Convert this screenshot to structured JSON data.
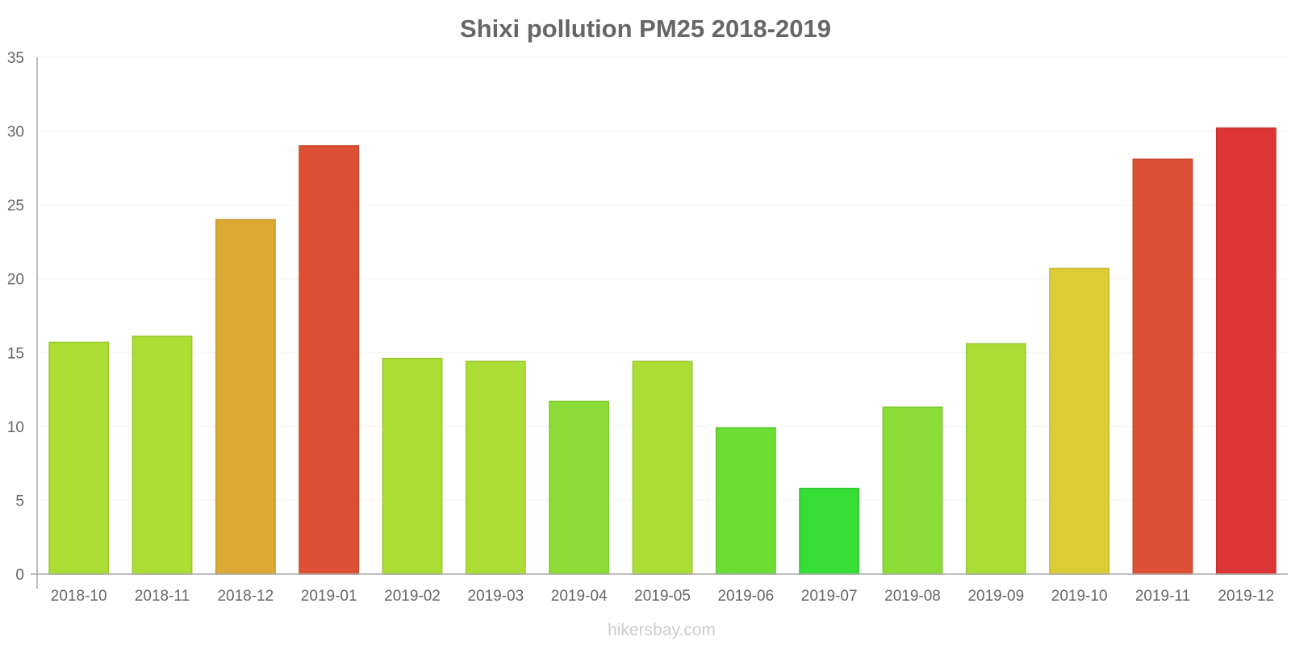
{
  "chart_data": {
    "type": "bar",
    "title": "Shixi pollution PM25 2018-2019",
    "xlabel": "",
    "ylabel": "",
    "ylim": [
      0,
      35
    ],
    "yticks": [
      0,
      5,
      10,
      15,
      20,
      25,
      30,
      35
    ],
    "grid": true,
    "legend": "none",
    "categories": [
      "2018-10",
      "2018-11",
      "2018-12",
      "2019-01",
      "2019-02",
      "2019-03",
      "2019-04",
      "2019-05",
      "2019-06",
      "2019-07",
      "2019-08",
      "2019-09",
      "2019-10",
      "2019-11",
      "2019-12"
    ],
    "values": [
      15.7,
      16.1,
      24.0,
      29.0,
      14.6,
      14.4,
      11.7,
      14.4,
      9.9,
      5.8,
      11.3,
      15.6,
      20.7,
      28.1,
      30.2
    ],
    "colors": [
      "#acdd35",
      "#acdd35",
      "#dca935",
      "#dd5035",
      "#acdd35",
      "#acdd35",
      "#8bdd35",
      "#acdd35",
      "#6cdd35",
      "#35dd35",
      "#8bdd35",
      "#acdd35",
      "#dccc35",
      "#dd5035",
      "#dd3535"
    ],
    "border_colors": [
      "#9bc730",
      "#9bc730",
      "#c6982f",
      "#c6482f",
      "#9bc730",
      "#9bc730",
      "#7dc730",
      "#9bc730",
      "#61c730",
      "#30c730",
      "#7dc730",
      "#9bc730",
      "#c6b82f",
      "#c6482f",
      "#c62f2f"
    ]
  },
  "watermark": "hikersbay.com"
}
